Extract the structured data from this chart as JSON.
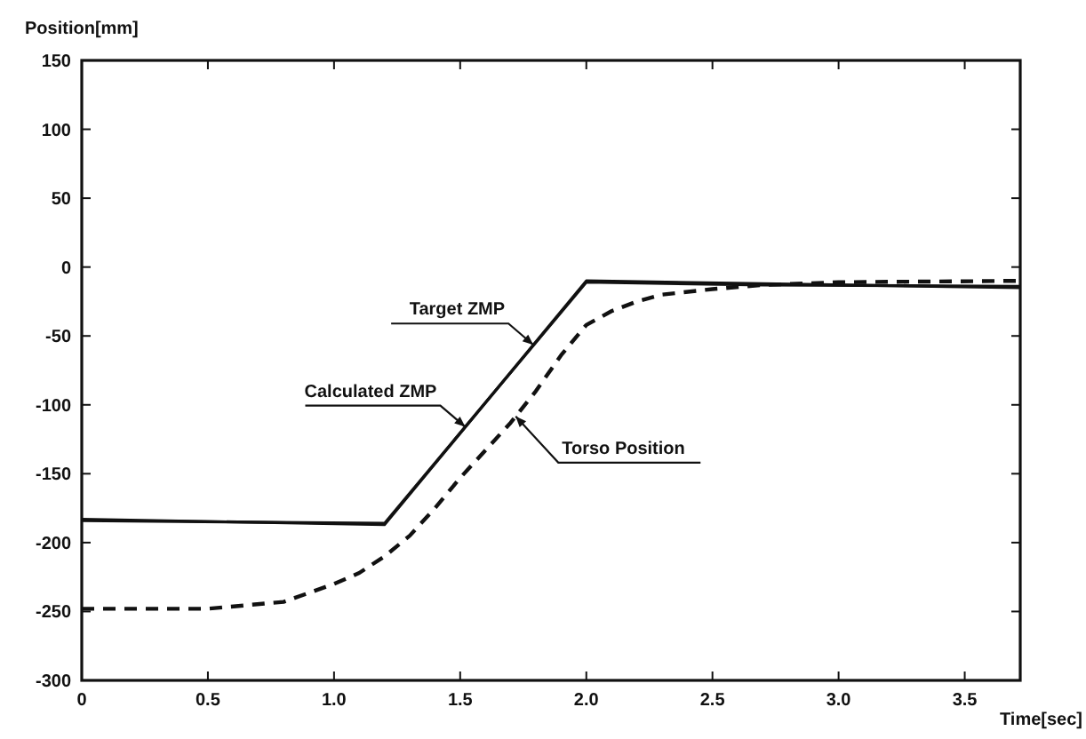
{
  "chart_data": {
    "type": "line",
    "xlabel": "Time[sec]",
    "ylabel": "Position[mm]",
    "xlim": [
      0,
      3.72
    ],
    "ylim": [
      -300,
      150
    ],
    "xticks": [
      0,
      0.5,
      {
        "value": 1,
        "label": "1.0"
      },
      1.5,
      {
        "value": 2,
        "label": "2.0"
      },
      2.5,
      {
        "value": 3,
        "label": "3.0"
      },
      3.5
    ],
    "yticks": [
      -300,
      -250,
      -200,
      -150,
      -100,
      -50,
      0,
      50,
      100,
      150
    ],
    "grid": false,
    "marker": "none",
    "series": [
      {
        "name": "Target ZMP",
        "color": "#111111",
        "line_style": "solid",
        "x": [
          0,
          1.2,
          2.0,
          3.72
        ],
        "values": [
          -183,
          -187,
          -10,
          -15
        ]
      },
      {
        "name": "Calculated ZMP",
        "color": "#111111",
        "line_style": "solid",
        "x": [
          0,
          1.2,
          2.0,
          2.7,
          3.72
        ],
        "values": [
          -184,
          -186,
          -11,
          -13,
          -14
        ]
      },
      {
        "name": "Torso Position",
        "color": "#111111",
        "line_style": "dashed",
        "x": [
          0,
          0.5,
          0.8,
          1.0,
          1.1,
          1.2,
          1.3,
          1.4,
          1.5,
          1.6,
          1.7,
          1.8,
          1.9,
          2.0,
          2.1,
          2.2,
          2.3,
          2.5,
          2.7,
          3.0,
          3.72
        ],
        "values": [
          -248,
          -248,
          -243,
          -230,
          -222,
          -210,
          -195,
          -175,
          -153,
          -133,
          -113,
          -90,
          -64,
          -42,
          -32,
          -25,
          -20,
          -16,
          -13,
          -11,
          -10
        ]
      }
    ]
  }
}
